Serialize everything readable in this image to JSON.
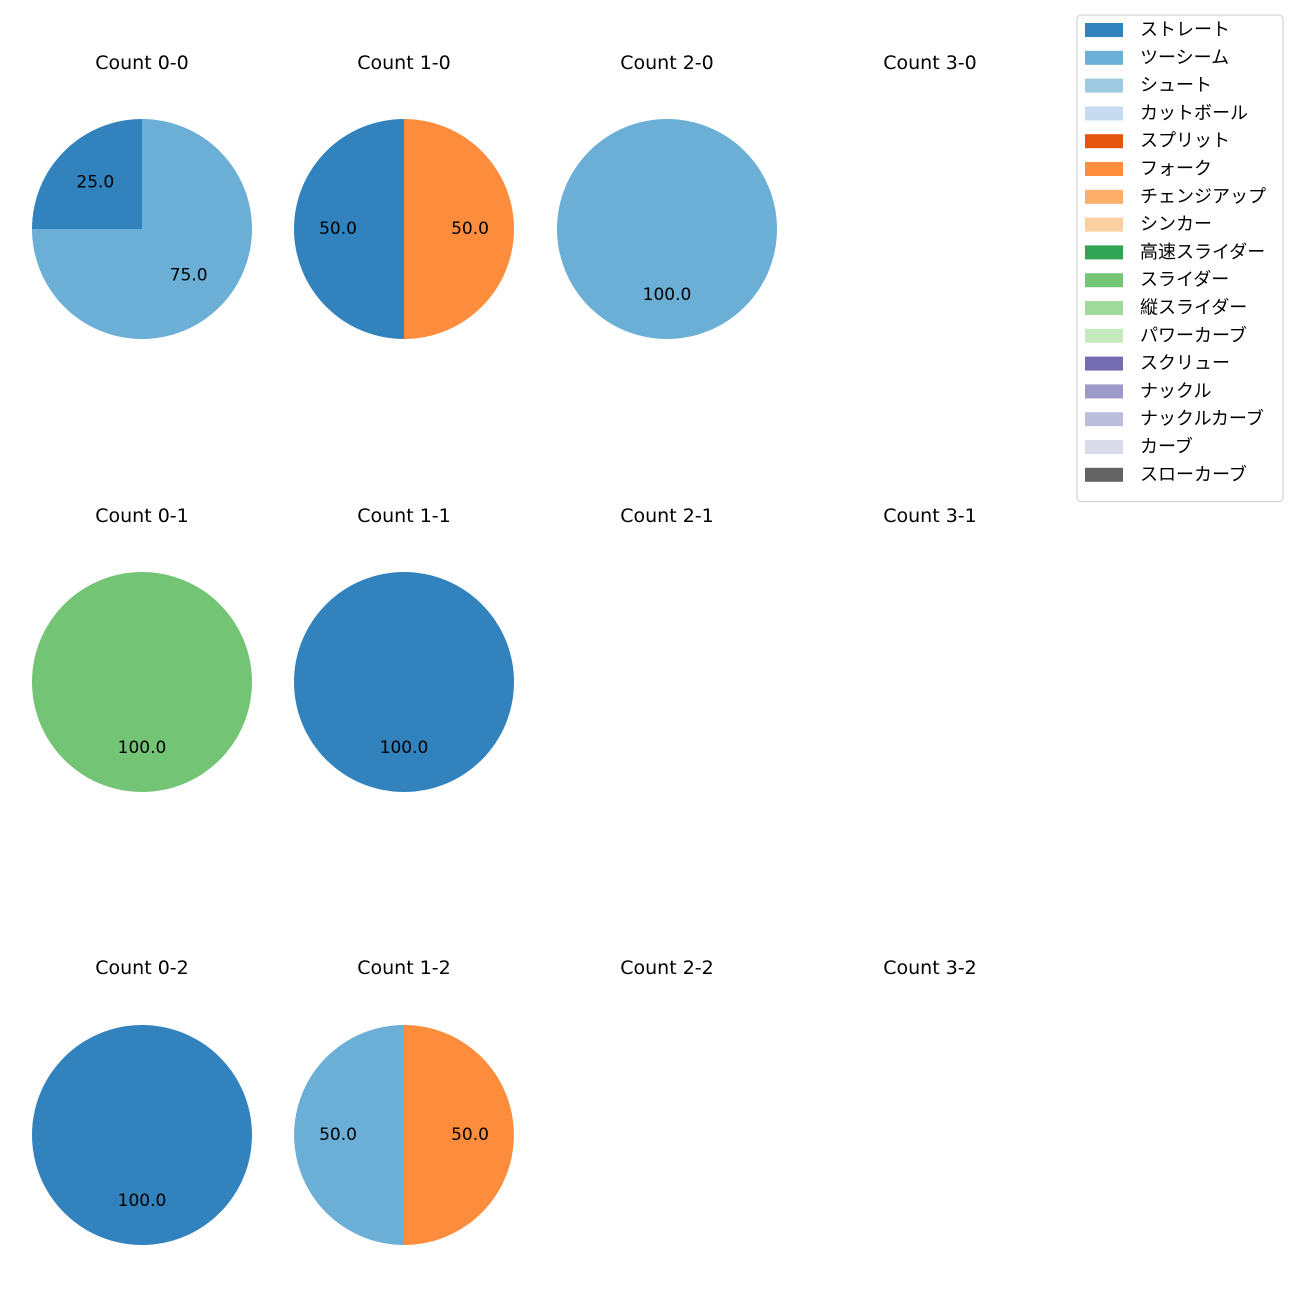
{
  "chart_data": {
    "type": "pie",
    "layout": {
      "rows": 3,
      "cols": 4
    },
    "legend": {
      "placement": "top-right",
      "entries": [
        {
          "name": "ストレート",
          "color": "#3182bd"
        },
        {
          "name": "ツーシーム",
          "color": "#6baed6"
        },
        {
          "name": "シュート",
          "color": "#9ecae1"
        },
        {
          "name": "カットボール",
          "color": "#c6dbef"
        },
        {
          "name": "スプリット",
          "color": "#e6550d"
        },
        {
          "name": "フォーク",
          "color": "#fd8d3c"
        },
        {
          "name": "チェンジアップ",
          "color": "#fdae6b"
        },
        {
          "name": "シンカー",
          "color": "#fdd0a2"
        },
        {
          "name": "高速スライダー",
          "color": "#31a354"
        },
        {
          "name": "スライダー",
          "color": "#74c476"
        },
        {
          "name": "縦スライダー",
          "color": "#a1d99b"
        },
        {
          "name": "パワーカーブ",
          "color": "#c7e9c0"
        },
        {
          "name": "スクリュー",
          "color": "#756bb1"
        },
        {
          "name": "ナックル",
          "color": "#9e9ac8"
        },
        {
          "name": "ナックルカーブ",
          "color": "#bcbddc"
        },
        {
          "name": "カーブ",
          "color": "#dadaeb"
        },
        {
          "name": "スローカーブ",
          "color": "#636363"
        }
      ]
    },
    "panels": [
      {
        "title": "Count 0-0",
        "row": 0,
        "col": 0,
        "slices": [
          {
            "pitch": "ストレート",
            "value": 25.0,
            "label": "25.0"
          },
          {
            "pitch": "ツーシーム",
            "value": 75.0,
            "label": "75.0"
          }
        ]
      },
      {
        "title": "Count 1-0",
        "row": 0,
        "col": 1,
        "slices": [
          {
            "pitch": "ストレート",
            "value": 50.0,
            "label": "50.0"
          },
          {
            "pitch": "フォーク",
            "value": 50.0,
            "label": "50.0"
          }
        ]
      },
      {
        "title": "Count 2-0",
        "row": 0,
        "col": 2,
        "slices": [
          {
            "pitch": "ツーシーム",
            "value": 100.0,
            "label": "100.0"
          }
        ]
      },
      {
        "title": "Count 3-0",
        "row": 0,
        "col": 3,
        "slices": []
      },
      {
        "title": "Count 0-1",
        "row": 1,
        "col": 0,
        "slices": [
          {
            "pitch": "スライダー",
            "value": 100.0,
            "label": "100.0"
          }
        ]
      },
      {
        "title": "Count 1-1",
        "row": 1,
        "col": 1,
        "slices": [
          {
            "pitch": "ストレート",
            "value": 100.0,
            "label": "100.0"
          }
        ]
      },
      {
        "title": "Count 2-1",
        "row": 1,
        "col": 2,
        "slices": []
      },
      {
        "title": "Count 3-1",
        "row": 1,
        "col": 3,
        "slices": []
      },
      {
        "title": "Count 0-2",
        "row": 2,
        "col": 0,
        "slices": [
          {
            "pitch": "ストレート",
            "value": 100.0,
            "label": "100.0"
          }
        ]
      },
      {
        "title": "Count 1-2",
        "row": 2,
        "col": 1,
        "slices": [
          {
            "pitch": "ツーシーム",
            "value": 50.0,
            "label": "50.0"
          },
          {
            "pitch": "フォーク",
            "value": 50.0,
            "label": "50.0"
          }
        ]
      },
      {
        "title": "Count 2-2",
        "row": 2,
        "col": 2,
        "slices": []
      },
      {
        "title": "Count 3-2",
        "row": 2,
        "col": 3,
        "slices": []
      }
    ]
  }
}
